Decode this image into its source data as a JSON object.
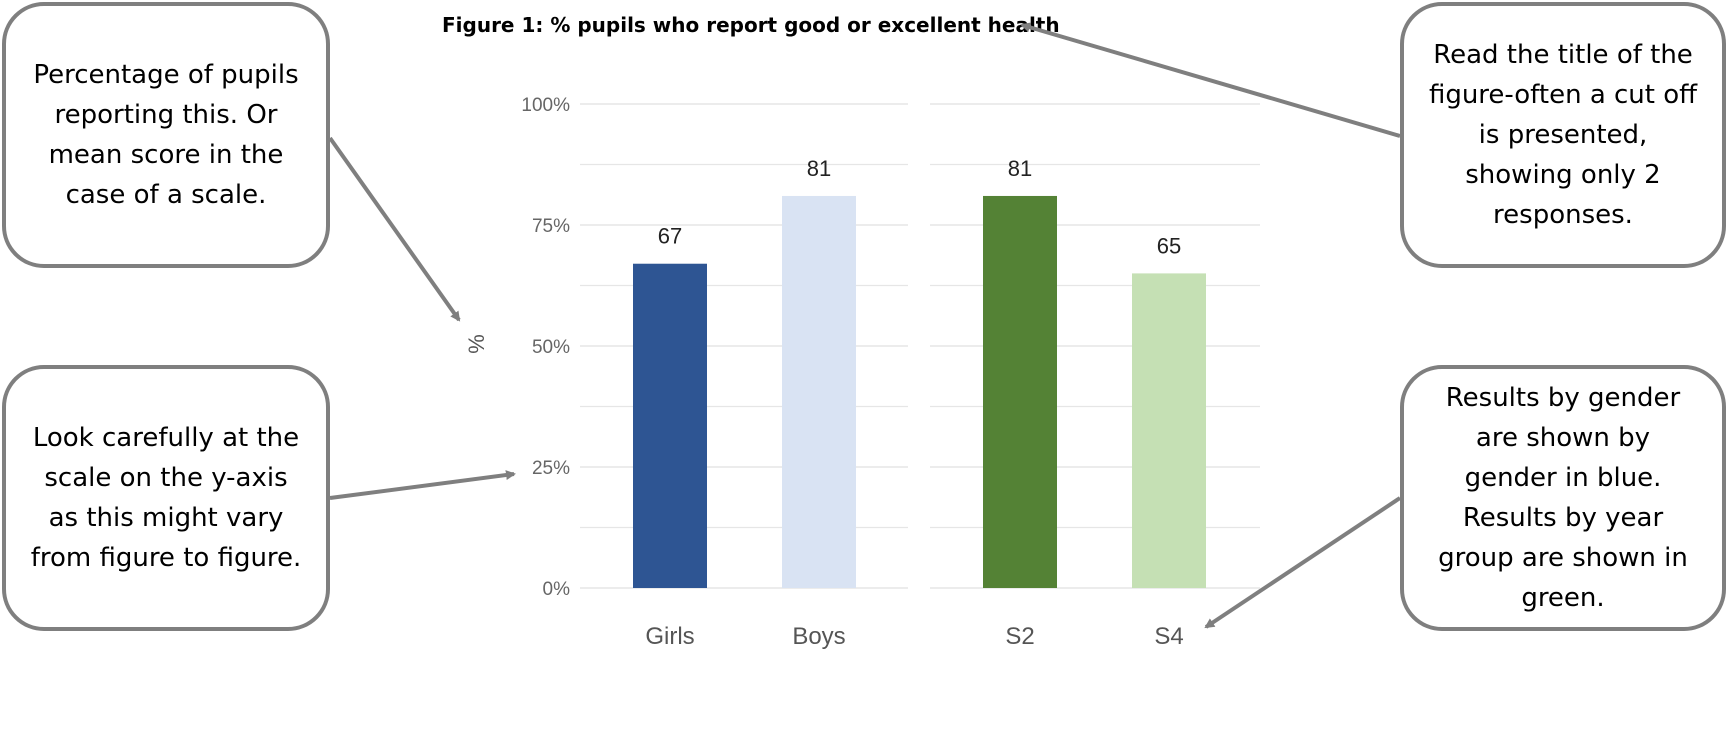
{
  "figure_title": "Figure 1: % pupils who report good or excellent health",
  "callouts": {
    "top_left": "Percentage of pupils reporting this. Or mean score in the case of a scale.",
    "bottom_left": "Look carefully at the scale on the y-axis as this might vary from figure to figure.",
    "top_right": "Read the title of the figure-often a cut off is presented, showing only 2 responses.",
    "bottom_right": "Results by gender are shown by gender in blue. Results by year group are shown in green."
  },
  "colors": {
    "girls": "#2e5593",
    "boys": "#d9e3f3",
    "s2": "#548235",
    "s4": "#c5e0b4",
    "arrow": "#7f7f7f",
    "grid": "#e6e6e6"
  },
  "chart_data": {
    "type": "bar",
    "title": "Figure 1: % pupils who report good or excellent health",
    "ylabel": "%",
    "xlabel": "",
    "ylim": [
      0,
      100
    ],
    "yticks": [
      0,
      25,
      50,
      75,
      100
    ],
    "ytick_labels": [
      "0%",
      "25%",
      "50%",
      "75%",
      "100%"
    ],
    "grid": true,
    "panels": [
      {
        "categories": [
          "Girls",
          "Boys"
        ],
        "values": [
          67,
          81
        ]
      },
      {
        "categories": [
          "S2",
          "S4"
        ],
        "values": [
          81,
          65
        ]
      }
    ],
    "data_labels": [
      "67",
      "81",
      "81",
      "65"
    ]
  }
}
